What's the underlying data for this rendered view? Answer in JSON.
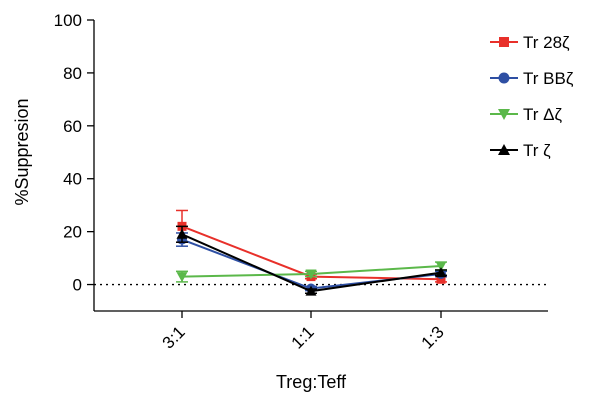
{
  "chart_data": {
    "type": "line",
    "xlabel": "Treg:Teff",
    "ylabel": "%Suppresion",
    "categories": [
      "3:1",
      "1:1",
      "1:3"
    ],
    "ylim": [
      -10,
      100
    ],
    "yticks": [
      0,
      20,
      40,
      60,
      80,
      100
    ],
    "reference_line_y": 0,
    "legend_position": "top-right",
    "grid": false,
    "series": [
      {
        "name": "Tr 28ζ",
        "color": "#e8302a",
        "marker": "square",
        "values": [
          22,
          3,
          2
        ],
        "errors": [
          6,
          0.8,
          1
        ]
      },
      {
        "name": "Tr BBζ",
        "color": "#2e4fa3",
        "marker": "circle",
        "values": [
          17,
          -1.5,
          4
        ],
        "errors": [
          2.5,
          0.8,
          1
        ]
      },
      {
        "name": "Tr Δζ",
        "color": "#5bb84a",
        "marker": "triangle-down",
        "values": [
          3,
          4,
          7
        ],
        "errors": [
          2,
          1,
          1.5
        ]
      },
      {
        "name": "Tr ζ",
        "color": "#000000",
        "marker": "triangle-up",
        "values": [
          19,
          -2.5,
          4.5
        ],
        "errors": [
          3,
          0.8,
          1
        ]
      }
    ]
  }
}
